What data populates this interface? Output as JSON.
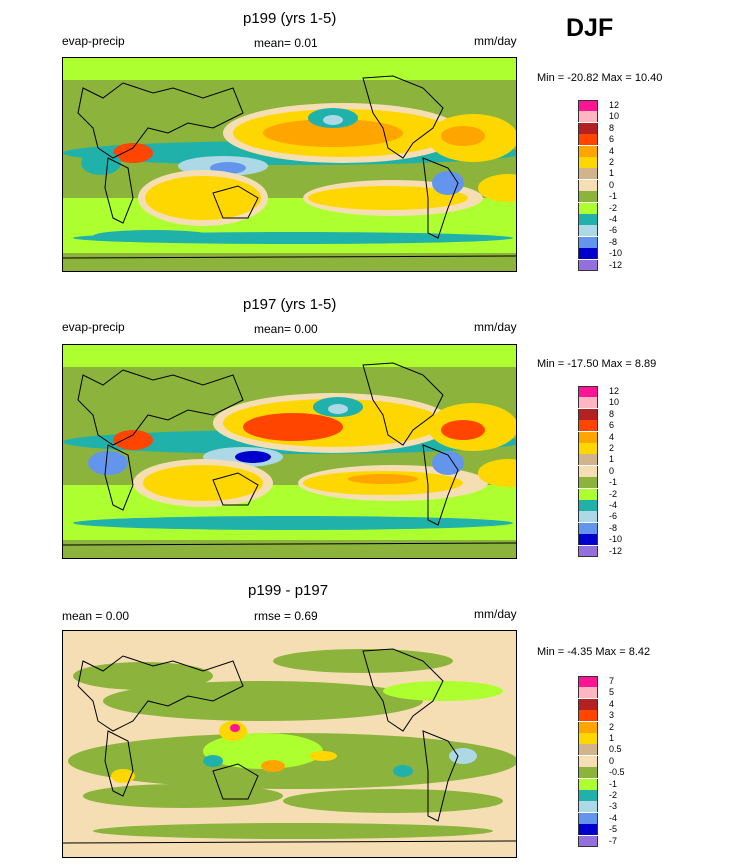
{
  "season": "DJF",
  "panels": [
    {
      "id": "p199",
      "title": "p199 (yrs 1-5)",
      "left_label": "evap-precip",
      "center_label": "mean=   0.01",
      "units": "mm/day",
      "minmax": "Min = -20.82 Max =  10.40",
      "colorbar": {
        "labels": [
          "12",
          "10",
          "8",
          "6",
          "4",
          "2",
          "1",
          "0",
          "-1",
          "-2",
          "-4",
          "-6",
          "-8",
          "-10",
          "-12"
        ],
        "colors": [
          "#ff1493",
          "#ffb6c1",
          "#b22222",
          "#ff4500",
          "#ffa500",
          "#ffd700",
          "#d2b48c",
          "#f5deb3",
          "#8cb43c",
          "#adff2f",
          "#20b2aa",
          "#add8e6",
          "#6495ed",
          "#0000cd",
          "#9370db"
        ]
      }
    },
    {
      "id": "p197",
      "title": "p197 (yrs 1-5)",
      "left_label": "evap-precip",
      "center_label": "mean=   0.00",
      "units": "mm/day",
      "minmax": "Min = -17.50 Max =   8.89",
      "colorbar": {
        "labels": [
          "12",
          "10",
          "8",
          "6",
          "4",
          "2",
          "1",
          "0",
          "-1",
          "-2",
          "-4",
          "-6",
          "-8",
          "-10",
          "-12"
        ],
        "colors": [
          "#ff1493",
          "#ffb6c1",
          "#b22222",
          "#ff4500",
          "#ffa500",
          "#ffd700",
          "#d2b48c",
          "#f5deb3",
          "#8cb43c",
          "#adff2f",
          "#20b2aa",
          "#add8e6",
          "#6495ed",
          "#0000cd",
          "#9370db"
        ]
      }
    },
    {
      "id": "diff",
      "title": "p199 - p197",
      "left_label": "mean =    0.00",
      "center_label": "rmse =   0.69",
      "units": "mm/day",
      "minmax": "Min =  -4.35 Max =   8.42",
      "colorbar": {
        "labels": [
          "7",
          "5",
          "4",
          "3",
          "2",
          "1",
          "0.5",
          "0",
          "-0.5",
          "-1",
          "-2",
          "-3",
          "-4",
          "-5",
          "-7"
        ],
        "colors": [
          "#ff1493",
          "#ffb6c1",
          "#b22222",
          "#ff4500",
          "#ffa500",
          "#ffd700",
          "#d2b48c",
          "#f5deb3",
          "#8cb43c",
          "#adff2f",
          "#20b2aa",
          "#add8e6",
          "#6495ed",
          "#0000cd",
          "#9370db"
        ]
      }
    }
  ],
  "chart_data": [
    {
      "type": "heatmap",
      "title": "p199 (yrs 1-5)",
      "variable": "evap-precip",
      "units": "mm/day",
      "mean": 0.01,
      "min": -20.82,
      "max": 10.4,
      "levels": [
        12,
        10,
        8,
        6,
        4,
        2,
        1,
        0,
        -1,
        -2,
        -4,
        -6,
        -8,
        -10,
        -12
      ]
    },
    {
      "type": "heatmap",
      "title": "p197 (yrs 1-5)",
      "variable": "evap-precip",
      "units": "mm/day",
      "mean": 0.0,
      "min": -17.5,
      "max": 8.89,
      "levels": [
        12,
        10,
        8,
        6,
        4,
        2,
        1,
        0,
        -1,
        -2,
        -4,
        -6,
        -8,
        -10,
        -12
      ]
    },
    {
      "type": "heatmap",
      "title": "p199 - p197",
      "units": "mm/day",
      "mean": 0.0,
      "rmse": 0.69,
      "min": -4.35,
      "max": 8.42,
      "levels": [
        7,
        5,
        4,
        3,
        2,
        1,
        0.5,
        0,
        -0.5,
        -1,
        -2,
        -3,
        -4,
        -5,
        -7
      ]
    }
  ]
}
